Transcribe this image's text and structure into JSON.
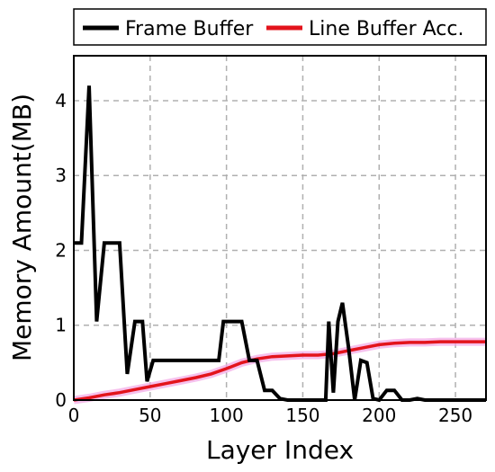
{
  "chart_data": {
    "type": "line",
    "title": "",
    "xlabel": "Layer Index",
    "ylabel": "Memory Amount(MB)",
    "xlim": [
      0,
      270
    ],
    "ylim": [
      0,
      4.6
    ],
    "xticks": [
      0,
      50,
      100,
      150,
      200,
      250
    ],
    "yticks": [
      0,
      1,
      2,
      3,
      4
    ],
    "grid": true,
    "legend_position": "top",
    "series": [
      {
        "name": "Frame Buffer",
        "color": "#000000",
        "x": [
          0,
          5,
          10,
          15,
          20,
          25,
          30,
          35,
          40,
          45,
          48,
          52,
          60,
          70,
          80,
          90,
          95,
          98,
          100,
          105,
          110,
          115,
          120,
          125,
          130,
          135,
          140,
          145,
          150,
          160,
          165,
          167,
          170,
          173,
          176,
          180,
          184,
          188,
          192,
          196,
          200,
          205,
          210,
          215,
          220,
          225,
          230,
          240,
          250,
          260,
          270
        ],
        "y": [
          2.1,
          2.1,
          4.2,
          1.05,
          2.1,
          2.1,
          2.1,
          0.35,
          1.05,
          1.05,
          0.25,
          0.53,
          0.53,
          0.53,
          0.53,
          0.53,
          0.53,
          1.05,
          1.05,
          1.05,
          1.05,
          0.53,
          0.53,
          0.13,
          0.13,
          0.02,
          0.0,
          0.0,
          0.0,
          0.0,
          0.0,
          1.05,
          0.1,
          1.05,
          1.3,
          0.7,
          0.0,
          0.53,
          0.5,
          0.02,
          0.0,
          0.13,
          0.13,
          0.0,
          0.0,
          0.02,
          0.0,
          0.0,
          0.0,
          0.0,
          0.0
        ]
      },
      {
        "name": "Line Buffer Acc.",
        "color": "#e3141c",
        "x": [
          0,
          10,
          20,
          30,
          40,
          50,
          60,
          70,
          80,
          90,
          100,
          110,
          120,
          130,
          140,
          150,
          160,
          170,
          180,
          190,
          200,
          210,
          220,
          230,
          240,
          250,
          260,
          270
        ],
        "y": [
          0.0,
          0.03,
          0.07,
          0.1,
          0.14,
          0.18,
          0.22,
          0.26,
          0.3,
          0.35,
          0.42,
          0.5,
          0.55,
          0.58,
          0.59,
          0.6,
          0.6,
          0.62,
          0.66,
          0.7,
          0.74,
          0.76,
          0.77,
          0.77,
          0.78,
          0.78,
          0.78,
          0.78
        ]
      }
    ]
  }
}
